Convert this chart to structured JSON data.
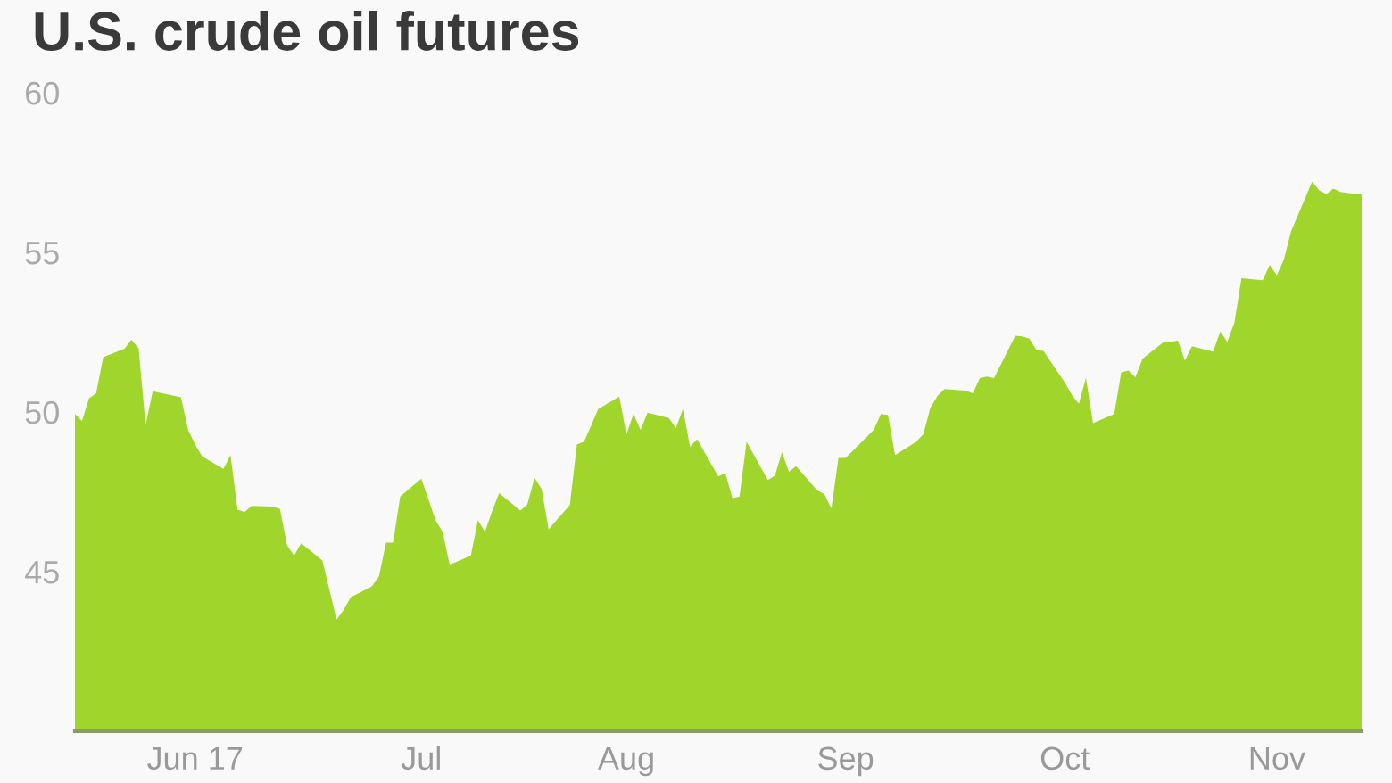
{
  "chart_data": {
    "type": "area",
    "title": "U.S. crude oil futures",
    "x": [
      "2017-05-15",
      "2017-05-16",
      "2017-05-17",
      "2017-05-18",
      "2017-05-19",
      "2017-05-22",
      "2017-05-23",
      "2017-05-24",
      "2017-05-25",
      "2017-05-26",
      "2017-05-30",
      "2017-05-31",
      "2017-06-01",
      "2017-06-02",
      "2017-06-05",
      "2017-06-06",
      "2017-06-07",
      "2017-06-08",
      "2017-06-09",
      "2017-06-12",
      "2017-06-13",
      "2017-06-14",
      "2017-06-15",
      "2017-06-16",
      "2017-06-19",
      "2017-06-20",
      "2017-06-21",
      "2017-06-22",
      "2017-06-23",
      "2017-06-26",
      "2017-06-27",
      "2017-06-28",
      "2017-06-29",
      "2017-06-30",
      "2017-07-03",
      "2017-07-05",
      "2017-07-06",
      "2017-07-07",
      "2017-07-10",
      "2017-07-11",
      "2017-07-12",
      "2017-07-13",
      "2017-07-14",
      "2017-07-17",
      "2017-07-18",
      "2017-07-19",
      "2017-07-20",
      "2017-07-21",
      "2017-07-24",
      "2017-07-25",
      "2017-07-26",
      "2017-07-27",
      "2017-07-28",
      "2017-07-31",
      "2017-08-01",
      "2017-08-02",
      "2017-08-03",
      "2017-08-04",
      "2017-08-07",
      "2017-08-08",
      "2017-08-09",
      "2017-08-10",
      "2017-08-11",
      "2017-08-14",
      "2017-08-15",
      "2017-08-16",
      "2017-08-17",
      "2017-08-18",
      "2017-08-21",
      "2017-08-22",
      "2017-08-23",
      "2017-08-24",
      "2017-08-25",
      "2017-08-28",
      "2017-08-29",
      "2017-08-30",
      "2017-08-31",
      "2017-09-01",
      "2017-09-05",
      "2017-09-06",
      "2017-09-07",
      "2017-09-08",
      "2017-09-11",
      "2017-09-12",
      "2017-09-13",
      "2017-09-14",
      "2017-09-15",
      "2017-09-18",
      "2017-09-19",
      "2017-09-20",
      "2017-09-21",
      "2017-09-22",
      "2017-09-25",
      "2017-09-26",
      "2017-09-27",
      "2017-09-28",
      "2017-09-29",
      "2017-10-02",
      "2017-10-03",
      "2017-10-04",
      "2017-10-05",
      "2017-10-06",
      "2017-10-09",
      "2017-10-10",
      "2017-10-11",
      "2017-10-12",
      "2017-10-13",
      "2017-10-16",
      "2017-10-17",
      "2017-10-18",
      "2017-10-19",
      "2017-10-20",
      "2017-10-23",
      "2017-10-24",
      "2017-10-25",
      "2017-10-26",
      "2017-10-27",
      "2017-10-30",
      "2017-10-31",
      "2017-11-01",
      "2017-11-02",
      "2017-11-03",
      "2017-11-06",
      "2017-11-07",
      "2017-11-08",
      "2017-11-09",
      "2017-11-10",
      "2017-11-13"
    ],
    "series": [
      {
        "color": "#a0d62b",
        "values": [
          49.94,
          49.72,
          50.43,
          50.59,
          51.72,
          51.98,
          52.26,
          52.0,
          49.59,
          50.65,
          50.46,
          49.44,
          48.98,
          48.61,
          48.22,
          48.65,
          46.94,
          46.87,
          47.06,
          47.04,
          46.96,
          45.83,
          45.5,
          45.89,
          45.35,
          44.43,
          43.5,
          43.8,
          44.2,
          44.54,
          44.85,
          45.91,
          45.91,
          47.35,
          47.91,
          46.61,
          46.24,
          45.22,
          45.5,
          46.61,
          46.24,
          46.89,
          47.46,
          46.91,
          47.11,
          47.94,
          47.59,
          46.33,
          47.09,
          48.98,
          49.07,
          49.57,
          50.09,
          50.48,
          49.3,
          49.94,
          49.44,
          49.98,
          49.81,
          49.5,
          50.09,
          48.91,
          49.15,
          47.98,
          48.09,
          47.3,
          47.35,
          49.07,
          47.87,
          48.0,
          48.74,
          48.13,
          48.3,
          47.54,
          47.43,
          46.98,
          48.56,
          48.56,
          49.44,
          49.94,
          49.91,
          48.65,
          49.07,
          49.3,
          50.13,
          50.5,
          50.72,
          50.67,
          50.59,
          51.06,
          51.11,
          51.06,
          52.39,
          52.37,
          52.3,
          51.94,
          51.91,
          50.93,
          50.54,
          50.26,
          51.07,
          49.65,
          49.94,
          51.24,
          51.3,
          51.09,
          51.67,
          52.19,
          52.19,
          52.24,
          51.61,
          52.06,
          51.89,
          52.52,
          52.2,
          52.8,
          54.19,
          54.13,
          54.61,
          54.28,
          54.78,
          55.65,
          57.22,
          56.94,
          56.83,
          57.0,
          56.89,
          56.81
        ]
      }
    ],
    "xlim": [
      "2017-05-15",
      "2017-11-13"
    ],
    "xticks": [
      {
        "value": "2017-06-01",
        "label": "Jun 17"
      },
      {
        "value": "2017-07-03",
        "label": "Jul"
      },
      {
        "value": "2017-08-01",
        "label": "Aug"
      },
      {
        "value": "2017-09-01",
        "label": "Sep"
      },
      {
        "value": "2017-10-02",
        "label": "Oct"
      },
      {
        "value": "2017-11-01",
        "label": "Nov"
      }
    ],
    "ylim": [
      40,
      60
    ],
    "yticks": [
      45,
      50,
      55,
      60
    ],
    "grid": false,
    "legend": false
  }
}
